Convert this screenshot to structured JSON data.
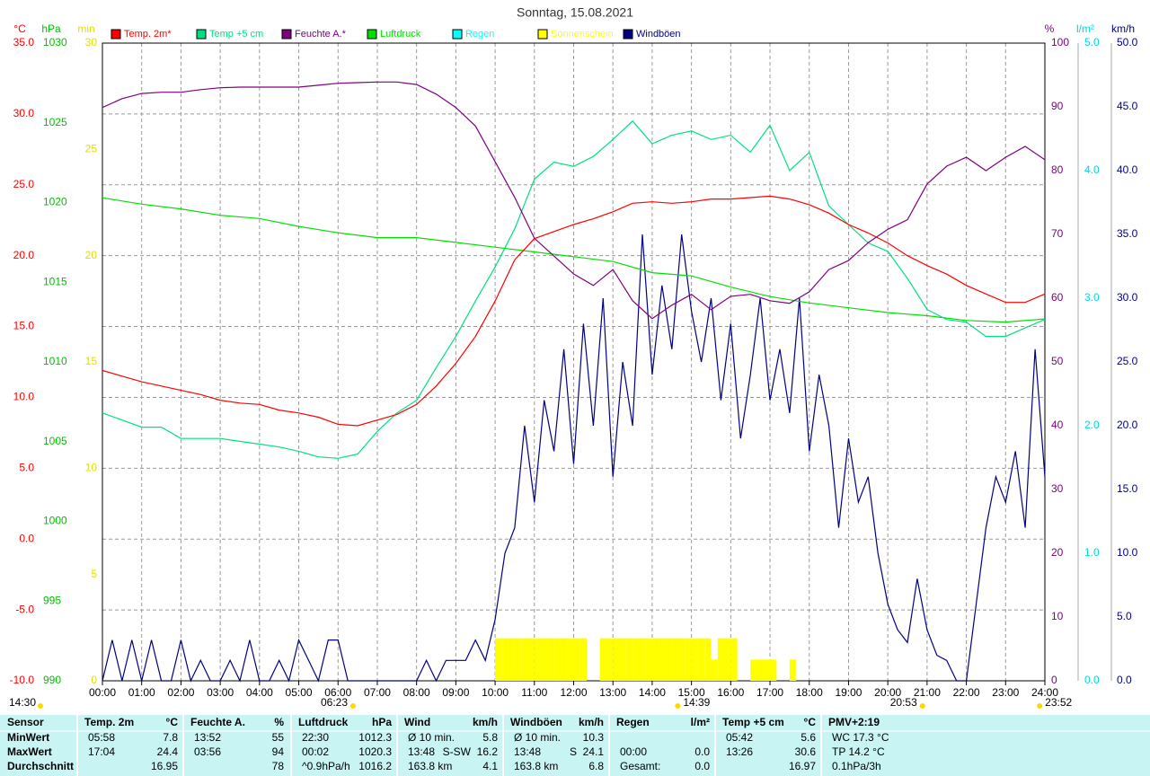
{
  "chart_data": {
    "type": "line",
    "title": "Sonntag, 15.08.2021",
    "grid": true,
    "xlim": [
      0,
      1440
    ],
    "xticks": [
      {
        "value": 0,
        "label": "00:00"
      },
      {
        "value": 60,
        "label": "01:00"
      },
      {
        "value": 120,
        "label": "02:00"
      },
      {
        "value": 180,
        "label": "03:00"
      },
      {
        "value": 240,
        "label": "04:00"
      },
      {
        "value": 300,
        "label": "05:00"
      },
      {
        "value": 360,
        "label": "06:00"
      },
      {
        "value": 420,
        "label": "07:00"
      },
      {
        "value": 480,
        "label": "08:00"
      },
      {
        "value": 540,
        "label": "09:00"
      },
      {
        "value": 600,
        "label": "10:00"
      },
      {
        "value": 660,
        "label": "11:00"
      },
      {
        "value": 720,
        "label": "12:00"
      },
      {
        "value": 780,
        "label": "13:00"
      },
      {
        "value": 840,
        "label": "14:00"
      },
      {
        "value": 900,
        "label": "15:00"
      },
      {
        "value": 960,
        "label": "16:00"
      },
      {
        "value": 1020,
        "label": "17:00"
      },
      {
        "value": 1080,
        "label": "18:00"
      },
      {
        "value": 1140,
        "label": "19:00"
      },
      {
        "value": 1200,
        "label": "20:00"
      },
      {
        "value": 1260,
        "label": "21:00"
      },
      {
        "value": 1320,
        "label": "22:00"
      },
      {
        "value": 1380,
        "label": "23:00"
      },
      {
        "value": 1440,
        "label": "24:00"
      }
    ],
    "axes": {
      "y": {
        "label": "°C",
        "color": "#ff0000",
        "lim": [
          -10,
          35
        ],
        "ticks": [
          {
            "value": -10,
            "label": "-10.0"
          },
          {
            "value": -5,
            "label": "-5.0"
          },
          {
            "value": 0,
            "label": "0.0"
          },
          {
            "value": 5,
            "label": "5.0"
          },
          {
            "value": 10,
            "label": "10.0"
          },
          {
            "value": 15,
            "label": "15.0"
          },
          {
            "value": 20,
            "label": "20.0"
          },
          {
            "value": 25,
            "label": "25.0"
          },
          {
            "value": 30,
            "label": "30.0"
          },
          {
            "value": 35,
            "label": "35.0"
          }
        ]
      },
      "y_hpa": {
        "label": "hPa",
        "color": "#00c000",
        "lim": [
          990,
          1030
        ],
        "ticks": [
          990,
          995,
          1000,
          1005,
          1010,
          1015,
          1020,
          1025,
          1030
        ]
      },
      "y_min": {
        "label": "min",
        "color": "#e0e000",
        "lim": [
          0,
          30
        ],
        "ticks": [
          0,
          5,
          10,
          15,
          20,
          25,
          30
        ]
      },
      "y2": {
        "label": "%",
        "color": "#800080",
        "lim": [
          0,
          100
        ],
        "ticks": [
          0,
          10,
          20,
          30,
          40,
          50,
          60,
          70,
          80,
          90,
          100
        ]
      },
      "y2_rain": {
        "label": "l/m²",
        "color": "#00d8d8",
        "lim": [
          0,
          5
        ],
        "ticks": [
          {
            "value": 0,
            "label": "0.0"
          },
          {
            "value": 1,
            "label": "1.0"
          },
          {
            "value": 2,
            "label": "2.0"
          },
          {
            "value": 3,
            "label": "3.0"
          },
          {
            "value": 4,
            "label": "4.0"
          },
          {
            "value": 5,
            "label": "5.0"
          }
        ]
      },
      "y2_kmh": {
        "label": "km/h",
        "color": "#000080",
        "lim": [
          0,
          50
        ],
        "ticks": [
          {
            "value": 0,
            "label": "0.0"
          },
          {
            "value": 5,
            "label": "5.0"
          },
          {
            "value": 10,
            "label": "10.0"
          },
          {
            "value": 15,
            "label": "15.0"
          },
          {
            "value": 20,
            "label": "20.0"
          },
          {
            "value": 25,
            "label": "25.0"
          },
          {
            "value": 30,
            "label": "30.0"
          },
          {
            "value": 35,
            "label": "35.0"
          },
          {
            "value": 40,
            "label": "40.0"
          },
          {
            "value": 45,
            "label": "45.0"
          },
          {
            "value": 50,
            "label": "50.0"
          }
        ]
      }
    },
    "series": [
      {
        "name": "Temp. 2m*",
        "color": "#ff0000",
        "type": "line",
        "axis": "y",
        "x": [
          0,
          30,
          60,
          90,
          120,
          150,
          180,
          210,
          240,
          270,
          300,
          330,
          360,
          390,
          420,
          450,
          480,
          510,
          540,
          570,
          600,
          630,
          660,
          690,
          720,
          750,
          780,
          810,
          840,
          870,
          900,
          930,
          960,
          990,
          1020,
          1050,
          1080,
          1110,
          1140,
          1170,
          1200,
          1230,
          1260,
          1290,
          1320,
          1350,
          1380,
          1410,
          1440
        ],
        "values": [
          11.9,
          11.5,
          11.1,
          10.8,
          10.5,
          10.2,
          9.8,
          9.6,
          9.5,
          9.1,
          8.9,
          8.6,
          8.1,
          8.0,
          8.4,
          8.8,
          9.5,
          10.8,
          12.4,
          14.3,
          16.8,
          19.7,
          21.2,
          21.7,
          22.2,
          22.6,
          23.1,
          23.7,
          23.8,
          23.7,
          23.8,
          24.0,
          24.0,
          24.1,
          24.2,
          24.0,
          23.6,
          23.0,
          22.2,
          21.6,
          20.9,
          20.0,
          19.3,
          18.7,
          17.9,
          17.3,
          16.7,
          16.7,
          17.3
        ]
      },
      {
        "name": "Temp +5 cm",
        "color": "#00e080",
        "type": "line",
        "axis": "y",
        "x": [
          0,
          30,
          60,
          90,
          120,
          150,
          180,
          210,
          240,
          270,
          300,
          330,
          360,
          390,
          420,
          450,
          480,
          510,
          540,
          570,
          600,
          630,
          660,
          690,
          720,
          750,
          780,
          810,
          840,
          870,
          900,
          930,
          960,
          990,
          1020,
          1050,
          1080,
          1110,
          1140,
          1170,
          1200,
          1230,
          1260,
          1290,
          1320,
          1350,
          1380,
          1410,
          1440
        ],
        "values": [
          8.9,
          8.4,
          7.9,
          7.9,
          7.1,
          7.1,
          7.1,
          6.9,
          6.7,
          6.5,
          6.2,
          5.8,
          5.7,
          6.0,
          7.6,
          8.9,
          9.8,
          12.1,
          14.3,
          16.8,
          19.2,
          21.9,
          25.4,
          26.6,
          26.3,
          27.0,
          28.2,
          29.5,
          27.9,
          28.5,
          28.8,
          28.2,
          28.5,
          27.3,
          29.2,
          26.0,
          27.3,
          23.5,
          22.2,
          20.9,
          20.3,
          18.4,
          16.2,
          15.5,
          15.3,
          14.3,
          14.3,
          14.9,
          15.5
        ]
      },
      {
        "name": "Feuchte A.*",
        "color": "#800080",
        "type": "line",
        "axis": "y2",
        "x": [
          0,
          30,
          60,
          90,
          120,
          150,
          180,
          210,
          240,
          270,
          300,
          330,
          360,
          390,
          420,
          450,
          480,
          510,
          540,
          570,
          600,
          630,
          660,
          690,
          720,
          750,
          780,
          810,
          840,
          870,
          900,
          930,
          960,
          990,
          1020,
          1050,
          1080,
          1110,
          1140,
          1170,
          1200,
          1230,
          1260,
          1290,
          1320,
          1350,
          1380,
          1410,
          1440
        ],
        "values": [
          89.9,
          91.3,
          92.1,
          92.3,
          92.3,
          92.7,
          93.0,
          93.1,
          93.1,
          93.1,
          93.1,
          93.4,
          93.7,
          93.8,
          93.9,
          93.9,
          93.5,
          92.0,
          89.9,
          87.0,
          81.4,
          75.8,
          69.4,
          66.6,
          63.8,
          62.0,
          64.5,
          59.6,
          56.8,
          58.9,
          60.6,
          58.2,
          60.3,
          60.6,
          59.6,
          59.2,
          61.0,
          64.5,
          65.9,
          68.7,
          70.8,
          72.3,
          77.9,
          80.7,
          82.1,
          80.0,
          82.1,
          83.8,
          81.7
        ]
      },
      {
        "name": "Luftdruck",
        "color": "#00e000",
        "type": "line",
        "axis": "y_hpa",
        "x": [
          0,
          60,
          120,
          180,
          240,
          300,
          360,
          420,
          480,
          540,
          600,
          660,
          720,
          780,
          840,
          900,
          960,
          1020,
          1080,
          1140,
          1200,
          1260,
          1320,
          1380,
          1440
        ],
        "values": [
          1020.3,
          1019.9,
          1019.6,
          1019.2,
          1019.0,
          1018.5,
          1018.1,
          1017.8,
          1017.8,
          1017.5,
          1017.2,
          1016.9,
          1016.6,
          1016.3,
          1015.6,
          1015.4,
          1014.7,
          1014.1,
          1013.7,
          1013.4,
          1013.1,
          1012.9,
          1012.6,
          1012.5,
          1012.7
        ]
      },
      {
        "name": "Regen",
        "color": "#00ffff",
        "type": "bar",
        "axis": "y2_rain",
        "x": [],
        "values": []
      },
      {
        "name": "Sonnenschein",
        "color": "#ffff00",
        "type": "bar",
        "axis": "y_min",
        "x": [
          600,
          610,
          620,
          630,
          640,
          650,
          660,
          670,
          680,
          690,
          700,
          710,
          720,
          730,
          740,
          750,
          760,
          770,
          780,
          790,
          800,
          810,
          820,
          830,
          840,
          850,
          860,
          870,
          880,
          890,
          900,
          910,
          920,
          930,
          940,
          950,
          960,
          970,
          980,
          990,
          1000,
          1010,
          1020,
          1030,
          1040,
          1050
        ],
        "values": [
          2,
          2,
          2,
          2,
          2,
          2,
          2,
          2,
          2,
          2,
          2,
          2,
          2,
          2,
          0,
          0,
          2,
          2,
          2,
          2,
          2,
          2,
          2,
          2,
          2,
          2,
          2,
          2,
          2,
          2,
          2,
          2,
          2,
          1,
          2,
          2,
          2,
          0,
          0,
          1,
          1,
          1,
          1,
          0,
          0,
          1
        ]
      },
      {
        "name": "Windböen",
        "color": "#000080",
        "type": "line",
        "axis": "y2_kmh",
        "x": [
          0,
          15,
          30,
          45,
          60,
          75,
          90,
          105,
          120,
          135,
          150,
          165,
          180,
          195,
          210,
          225,
          240,
          255,
          270,
          285,
          300,
          315,
          330,
          345,
          360,
          375,
          390,
          405,
          420,
          435,
          450,
          465,
          480,
          495,
          510,
          525,
          540,
          555,
          570,
          585,
          600,
          615,
          630,
          645,
          660,
          675,
          690,
          705,
          720,
          735,
          750,
          765,
          780,
          795,
          810,
          825,
          840,
          855,
          870,
          885,
          900,
          915,
          930,
          945,
          960,
          975,
          990,
          1005,
          1020,
          1035,
          1050,
          1065,
          1080,
          1095,
          1110,
          1125,
          1140,
          1155,
          1170,
          1185,
          1200,
          1215,
          1230,
          1245,
          1260,
          1275,
          1290,
          1305,
          1320,
          1335,
          1350,
          1365,
          1380,
          1395,
          1410,
          1425,
          1440
        ],
        "values": [
          0,
          3.2,
          0,
          3.2,
          0,
          3.2,
          0,
          0,
          3.2,
          0,
          1.6,
          0,
          0,
          1.6,
          0,
          3.2,
          0,
          0,
          1.6,
          0,
          3.2,
          1.6,
          0,
          3.2,
          3.2,
          0,
          0,
          0,
          0,
          0,
          0,
          0,
          0,
          1.6,
          0,
          1.6,
          1.6,
          1.6,
          3.2,
          1.6,
          4.8,
          10,
          12,
          20,
          14,
          22,
          18,
          26,
          17,
          28,
          20,
          30,
          16,
          25,
          20,
          35,
          24,
          31,
          26,
          35,
          29,
          25,
          30,
          22,
          28,
          19,
          24,
          30,
          22,
          26,
          21,
          30,
          18,
          24,
          20,
          12,
          19,
          14,
          16,
          10,
          6,
          4,
          3,
          8,
          4,
          2,
          1.6,
          0,
          0,
          6,
          12,
          16,
          14,
          18,
          12,
          26,
          16
        ]
      }
    ],
    "annotations": [
      {
        "x": 383,
        "label": "06:23"
      },
      {
        "x": 879,
        "label": "14:39"
      },
      {
        "x": 1253,
        "label": "20:53"
      },
      {
        "x": 1432,
        "label": "23:52"
      }
    ],
    "time_label": "14:30"
  },
  "stats": {
    "row_labels": [
      "Sensor",
      "MinWert",
      "MaxWert",
      "Durchschnitt"
    ],
    "groups": [
      {
        "title": "Temp. 2m",
        "unit": "°C",
        "rows": [
          {
            "left": "05:58",
            "value": "7.8"
          },
          {
            "left": "17:04",
            "value": "24.4"
          },
          {
            "value": "16.95"
          }
        ]
      },
      {
        "title": "Feuchte A.",
        "unit": "%",
        "rows": [
          {
            "left": "13:52",
            "value": "55"
          },
          {
            "left": "03:56",
            "value": "94"
          },
          {
            "value": "78"
          }
        ]
      },
      {
        "title": "Luftdruck",
        "unit": "hPa",
        "rows": [
          {
            "left": "22:30",
            "value": "1012.3"
          },
          {
            "left": "00:02",
            "value": "1020.3"
          },
          {
            "left": "^0.9hPa/h",
            "value": "1016.2"
          }
        ]
      },
      {
        "title": "Wind",
        "unit": "km/h",
        "rows": [
          {
            "left": "Ø 10 min.",
            "value": "5.8"
          },
          {
            "left": "13:48",
            "mid": "S-SW",
            "value": "16.2"
          },
          {
            "left": "163.8 km",
            "value": "4.1"
          }
        ]
      },
      {
        "title": "Windböen",
        "unit": "km/h",
        "rows": [
          {
            "left": "Ø 10 min.",
            "value": "10.3"
          },
          {
            "left": "13:48",
            "mid": "S",
            "value": "24.1"
          },
          {
            "left": "163.8 km",
            "value": "6.8"
          }
        ]
      },
      {
        "title": "Regen",
        "unit": "l/m²",
        "rows": [
          {},
          {
            "left": "00:00",
            "value": "0.0"
          },
          {
            "left": "Gesamt:",
            "value": "0.0"
          }
        ]
      },
      {
        "title": "Temp +5 cm",
        "unit": "°C",
        "rows": [
          {
            "left": "05:42",
            "value": "5.6"
          },
          {
            "left": "13:26",
            "value": "30.6"
          },
          {
            "value": "16.97"
          }
        ]
      },
      {
        "title": "PMV+2:19",
        "rows": [
          {
            "left": "WC 17.3 °C"
          },
          {
            "left": "TP 14.2 °C"
          },
          {
            "left": "0.1hPa/3h"
          }
        ]
      }
    ]
  }
}
